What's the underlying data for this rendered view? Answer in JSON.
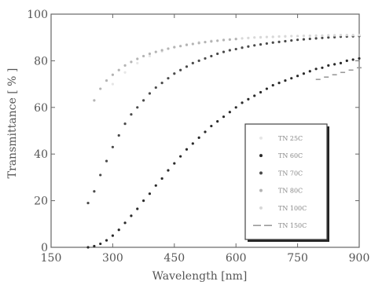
{
  "chart_data": {
    "type": "scatter",
    "title": "",
    "xlabel": "Wavelength [nm]",
    "ylabel": "Transmittance [ % ]",
    "xlim": [
      150,
      900
    ],
    "ylim": [
      0,
      100
    ],
    "xticks": [
      150,
      300,
      450,
      600,
      750,
      900
    ],
    "yticks": [
      0,
      20,
      40,
      60,
      80,
      100
    ],
    "xtick_labels": [
      "150",
      "300",
      "450",
      "600",
      "750",
      "900"
    ],
    "ytick_labels": [
      "0",
      "20",
      "40",
      "60",
      "80",
      "100"
    ],
    "grid": false,
    "legend_position": "lower-right",
    "series": [
      {
        "name": "TN 25C",
        "color": "#e6e6e6",
        "marker": "dot",
        "x": [
          300,
          330,
          360,
          390,
          420,
          450,
          480,
          510,
          540,
          570,
          600,
          630,
          660,
          690,
          720,
          750,
          780,
          810,
          840,
          870,
          900
        ],
        "y": [
          70,
          75,
          79,
          82,
          84,
          86,
          87,
          88,
          88.6,
          89,
          89.4,
          89.7,
          90,
          90.2,
          90.4,
          90.6,
          90.7,
          90.8,
          90.9,
          91,
          91
        ]
      },
      {
        "name": "TN 60C",
        "color": "#2a2a2a",
        "marker": "dot",
        "x": [
          240,
          255,
          270,
          285,
          300,
          315,
          330,
          345,
          360,
          375,
          390,
          405,
          420,
          435,
          450,
          465,
          480,
          495,
          510,
          525,
          540,
          555,
          570,
          585,
          600,
          615,
          630,
          645,
          660,
          675,
          690,
          705,
          720,
          735,
          750,
          765,
          780,
          795,
          810,
          825,
          840,
          855,
          870,
          885,
          900
        ],
        "y": [
          0,
          0.5,
          1.5,
          3,
          5,
          7.5,
          10.5,
          13.5,
          16.5,
          20,
          23,
          26.5,
          29.5,
          33,
          36,
          39,
          42,
          44.5,
          47,
          49.5,
          52,
          54,
          56,
          58,
          60,
          62,
          63.5,
          65,
          66.5,
          68,
          69.5,
          70.5,
          71.5,
          72.5,
          73.5,
          74.5,
          75.5,
          76.5,
          77,
          78,
          78.5,
          79,
          80,
          80.5,
          81
        ]
      },
      {
        "name": "TN 70C",
        "color": "#4a4a4a",
        "marker": "dot",
        "x": [
          240,
          255,
          270,
          285,
          300,
          315,
          330,
          345,
          360,
          375,
          390,
          405,
          420,
          435,
          450,
          465,
          480,
          495,
          510,
          525,
          540,
          555,
          570,
          585,
          600,
          615,
          630,
          645,
          660,
          675,
          690,
          705,
          720,
          735,
          750,
          765,
          780,
          795,
          810,
          825,
          840,
          855,
          870,
          885,
          900
        ],
        "y": [
          19,
          24,
          31,
          37,
          43,
          48,
          53,
          57,
          60,
          63,
          66,
          68.5,
          70.5,
          72.5,
          74.5,
          76,
          77.5,
          79,
          80,
          81,
          82,
          83,
          83.8,
          84.5,
          85,
          85.6,
          86.1,
          86.6,
          87,
          87.4,
          87.8,
          88.1,
          88.4,
          88.7,
          89,
          89.2,
          89.4,
          89.6,
          89.8,
          90,
          90.1,
          90.3,
          90.4,
          90.5,
          90.6
        ]
      },
      {
        "name": "TN 80C",
        "color": "#b4b4b4",
        "marker": "dot",
        "x": [
          255,
          270,
          285,
          300,
          315,
          330,
          345,
          360,
          375,
          390,
          405,
          420,
          435,
          450,
          465,
          480,
          495,
          510,
          525,
          540,
          555,
          570,
          585,
          600
        ],
        "y": [
          63,
          68,
          71.5,
          74,
          76,
          78,
          79.5,
          80.8,
          82,
          83,
          83.8,
          84.5,
          85.2,
          85.8,
          86.3,
          86.8,
          87.2,
          87.6,
          88,
          88.3,
          88.6,
          88.9,
          89.1,
          89.3
        ]
      },
      {
        "name": "TN 100C",
        "color": "#d8d8d8",
        "marker": "dot",
        "x": [
          615,
          630,
          645,
          660,
          675,
          690,
          705,
          720,
          735,
          750,
          765,
          780,
          795,
          810,
          825,
          840,
          855,
          870,
          885,
          900
        ],
        "y": [
          89.6,
          89.8,
          90,
          90.1,
          90.2,
          90.3,
          90.4,
          90.5,
          90.6,
          90.6,
          90.7,
          90.7,
          90.8,
          90.8,
          90.9,
          90.9,
          91,
          91,
          91,
          91
        ]
      },
      {
        "name": "TN 150C",
        "color": "#9a9a9a",
        "marker": "dash",
        "x": [
          800,
          820,
          840,
          860,
          880,
          900
        ],
        "y": [
          72,
          73,
          74,
          75,
          76,
          77
        ]
      }
    ]
  }
}
